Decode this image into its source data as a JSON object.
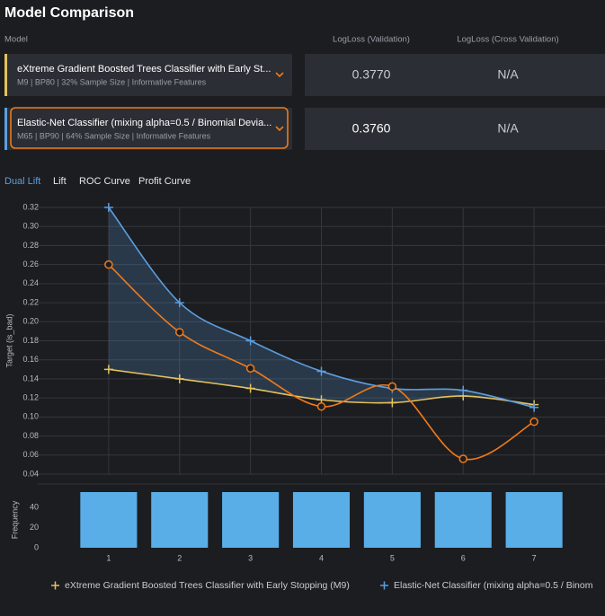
{
  "header": {
    "title": "Model Comparison"
  },
  "table": {
    "columns": [
      "Model",
      "LogLoss (Validation)",
      "LogLoss (Cross Validation)"
    ],
    "rows": [
      {
        "name": "eXtreme Gradient Boosted Trees Classifier with Early St...",
        "details": "M9 | BP80 | 32% Sample Size | Informative Features",
        "validation": "0.3770",
        "cross_validation": "N/A"
      },
      {
        "name": "Elastic-Net Classifier (mixing alpha=0.5 / Binomial Devia...",
        "details": "M65 | BP90 | 64% Sample Size | Informative Features",
        "validation": "0.3760",
        "cross_validation": "N/A"
      }
    ]
  },
  "tabs": [
    "Dual Lift",
    "Lift",
    "ROC Curve",
    "Profit Curve"
  ],
  "chart_data": [
    {
      "type": "line",
      "y_label": "Target (is_bad)",
      "x": [
        1,
        2,
        3,
        4,
        5,
        6,
        7
      ],
      "xlim": [
        0,
        8
      ],
      "ylim": [
        0.04,
        0.32
      ],
      "yticks": [
        0.04,
        0.06,
        0.08,
        {
          "value": 0.1,
          "label": "0.10"
        },
        0.12,
        0.14,
        0.16,
        0.18,
        {
          "value": 0.2,
          "label": "0.20"
        },
        0.22,
        0.24,
        0.26,
        0.28,
        {
          "value": 0.3,
          "label": "0.30"
        },
        0.32
      ],
      "grid": true,
      "series": [
        {
          "name": "eXtreme Gradient Boosted Trees Classifier with Early Stopping (M9)",
          "color": "#e3c25c",
          "marker": "plus",
          "values": [
            0.15,
            0.14,
            0.13,
            0.118,
            0.115,
            0.122,
            0.113
          ]
        },
        {
          "name": "Elastic-Net Classifier (mixing alpha=0.5 / Binom",
          "color": "#5b9fe0",
          "marker": "plus",
          "values": [
            0.32,
            0.22,
            0.18,
            0.148,
            0.13,
            0.128,
            0.11
          ]
        },
        {
          "color": "#f07a1a",
          "marker": "circle",
          "values": [
            0.26,
            0.189,
            0.151,
            0.111,
            0.132,
            0.056,
            0.095
          ]
        }
      ]
    },
    {
      "type": "bar",
      "y_label": "Frequency",
      "x": [
        1,
        2,
        3,
        4,
        5,
        6,
        7
      ],
      "xlim": [
        0,
        8
      ],
      "xticks": [
        1,
        2,
        3,
        4,
        5,
        6,
        7
      ],
      "ylim": [
        0,
        55
      ],
      "yticks": [
        0,
        20,
        40
      ],
      "color": "#5aaee8",
      "values": [
        55,
        55,
        55,
        55,
        55,
        55,
        55
      ]
    }
  ]
}
